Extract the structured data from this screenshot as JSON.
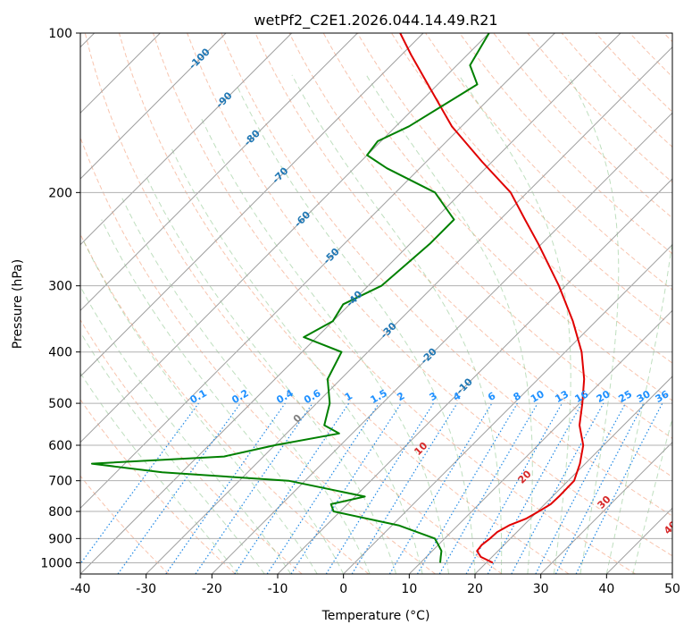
{
  "chart_data": {
    "type": "line",
    "title": "wetPf2_C2E1.2026.044.14.49.R21",
    "xlabel": "Temperature (°C)",
    "ylabel": "Pressure (hPa)",
    "xlim": [
      -40,
      50
    ],
    "ylim": [
      1050,
      100
    ],
    "y_scale": "log",
    "skew_t": true,
    "grid": true,
    "x_ticks": [
      -40,
      -30,
      -20,
      -10,
      0,
      10,
      20,
      30,
      40,
      50
    ],
    "y_ticks": [
      100,
      200,
      300,
      400,
      500,
      600,
      700,
      800,
      900,
      1000
    ],
    "series": [
      {
        "color": "#e00000",
        "points": [
          {
            "p": 1000,
            "t": 21.0
          },
          {
            "p": 975,
            "t": 18.3
          },
          {
            "p": 950,
            "t": 16.8
          },
          {
            "p": 925,
            "t": 16.6
          },
          {
            "p": 900,
            "t": 16.9
          },
          {
            "p": 875,
            "t": 17.0
          },
          {
            "p": 850,
            "t": 17.8
          },
          {
            "p": 825,
            "t": 19.4
          },
          {
            "p": 800,
            "t": 20.2
          },
          {
            "p": 775,
            "t": 20.9
          },
          {
            "p": 750,
            "t": 21.0
          },
          {
            "p": 700,
            "t": 20.9
          },
          {
            "p": 650,
            "t": 19.2
          },
          {
            "p": 600,
            "t": 16.9
          },
          {
            "p": 550,
            "t": 13.3
          },
          {
            "p": 500,
            "t": 10.4
          },
          {
            "p": 450,
            "t": 7.0
          },
          {
            "p": 400,
            "t": 2.5
          },
          {
            "p": 350,
            "t": -3.5
          },
          {
            "p": 300,
            "t": -11.0
          },
          {
            "p": 250,
            "t": -20.5
          },
          {
            "p": 225,
            "t": -26.2
          },
          {
            "p": 200,
            "t": -32.5
          },
          {
            "p": 175,
            "t": -41.5
          },
          {
            "p": 150,
            "t": -51.5
          },
          {
            "p": 125,
            "t": -61.5
          },
          {
            "p": 110,
            "t": -68.5
          },
          {
            "p": 100,
            "t": -73.5
          }
        ]
      },
      {
        "color": "#008000",
        "points": [
          {
            "p": 1000,
            "t": 13.0
          },
          {
            "p": 975,
            "t": 12.2
          },
          {
            "p": 950,
            "t": 11.4
          },
          {
            "p": 925,
            "t": 10.0
          },
          {
            "p": 900,
            "t": 8.5
          },
          {
            "p": 850,
            "t": 1.0
          },
          {
            "p": 800,
            "t": -11.0
          },
          {
            "p": 775,
            "t": -12.5
          },
          {
            "p": 750,
            "t": -8.5
          },
          {
            "p": 700,
            "t": -22.5
          },
          {
            "p": 675,
            "t": -43.0
          },
          {
            "p": 650,
            "t": -55.0
          },
          {
            "p": 630,
            "t": -36.0
          },
          {
            "p": 600,
            "t": -30.0
          },
          {
            "p": 570,
            "t": -22.0
          },
          {
            "p": 550,
            "t": -25.5
          },
          {
            "p": 500,
            "t": -28.0
          },
          {
            "p": 450,
            "t": -32.0
          },
          {
            "p": 400,
            "t": -34.0
          },
          {
            "p": 375,
            "t": -42.0
          },
          {
            "p": 350,
            "t": -40.0
          },
          {
            "p": 325,
            "t": -41.0
          },
          {
            "p": 300,
            "t": -38.0
          },
          {
            "p": 275,
            "t": -37.5
          },
          {
            "p": 250,
            "t": -37.0
          },
          {
            "p": 225,
            "t": -37.0
          },
          {
            "p": 200,
            "t": -44.0
          },
          {
            "p": 180,
            "t": -55.0
          },
          {
            "p": 170,
            "t": -60.0
          },
          {
            "p": 160,
            "t": -60.5
          },
          {
            "p": 150,
            "t": -58.0
          },
          {
            "p": 125,
            "t": -54.0
          },
          {
            "p": 115,
            "t": -58.0
          },
          {
            "p": 100,
            "t": -60.0
          }
        ]
      }
    ],
    "isotherm_labels": {
      "color": "#1f77b4",
      "values": [
        "-100",
        "-90",
        "-80",
        "-70",
        "-60",
        "-50",
        "-40",
        "-30",
        "-20",
        "-10"
      ]
    },
    "mixing_ratio_labels": {
      "color": "#1e90ff",
      "pressure": 500,
      "values": [
        "0.1",
        "0.2",
        "0.4",
        "0.6",
        "1",
        "1.5",
        "2",
        "3",
        "4",
        "6",
        "8",
        "10",
        "13",
        "16",
        "20",
        "25",
        "30",
        "36"
      ]
    },
    "moist_adiabat_labels": {
      "color": "#d62728",
      "values": [
        "0",
        "10",
        "20",
        "30",
        "40"
      ]
    }
  }
}
